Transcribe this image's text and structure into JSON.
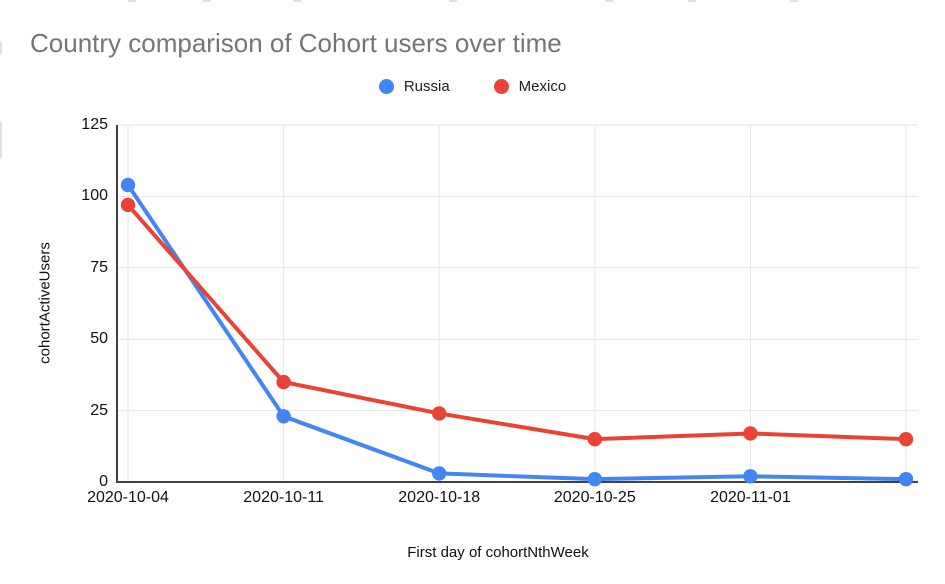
{
  "chart_data": {
    "type": "line",
    "title": "Country comparison of Cohort users over time",
    "xlabel": "First day of cohortNthWeek",
    "ylabel": "cohortActiveUsers",
    "x_tick_labels": [
      "2020-10-04",
      "2020-10-11",
      "2020-10-18",
      "2020-10-25",
      "2020-11-01",
      ""
    ],
    "y_ticks": [
      0,
      25,
      50,
      75,
      100,
      125
    ],
    "ylim": [
      0,
      125
    ],
    "grid": true,
    "legend_position": "top",
    "series": [
      {
        "name": "Russia",
        "color": "#4285F4",
        "values": [
          104,
          23,
          3,
          1,
          2,
          1
        ]
      },
      {
        "name": "Mexico",
        "color": "#EA4335",
        "values": [
          97,
          35,
          24,
          15,
          17,
          15
        ]
      }
    ]
  }
}
